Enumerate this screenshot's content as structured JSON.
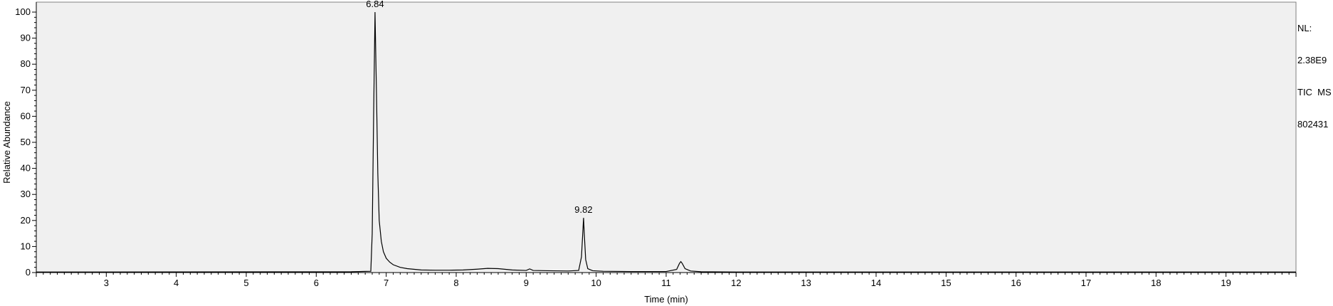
{
  "info": {
    "nl_label": "NL:",
    "nl_value": "2.38E9",
    "scan_filter": "TIC  MS",
    "sample": "802431"
  },
  "chart_data": {
    "type": "line",
    "xlabel": "Time (min)",
    "ylabel": "Relative Abundance",
    "xlim": [
      2.0,
      20.0
    ],
    "ylim": [
      0,
      100
    ],
    "x_ticks": [
      3,
      4,
      5,
      6,
      7,
      8,
      9,
      10,
      11,
      12,
      13,
      14,
      15,
      16,
      17,
      18,
      19
    ],
    "y_ticks": [
      0,
      10,
      20,
      30,
      40,
      50,
      60,
      70,
      80,
      90,
      100
    ],
    "grid": false,
    "background": "#f0f0f0",
    "line_color": "#000000",
    "annotations": [
      {
        "x": 6.84,
        "y": 100,
        "label": "6.84"
      },
      {
        "x": 9.82,
        "y": 21,
        "label": "9.82"
      }
    ],
    "series": [
      {
        "x": [
          2.0,
          6.5,
          6.78,
          6.8,
          6.82,
          6.84,
          6.86,
          6.88,
          6.9,
          6.93,
          6.96,
          7.0,
          7.05,
          7.1,
          7.2,
          7.3,
          7.5,
          7.7,
          7.9,
          8.1,
          8.3,
          8.45,
          8.6,
          8.8,
          9.0,
          9.05,
          9.1,
          9.3,
          9.6,
          9.75,
          9.79,
          9.81,
          9.82,
          9.83,
          9.85,
          9.88,
          9.95,
          10.1,
          10.5,
          11.0,
          11.15,
          11.19,
          11.21,
          11.23,
          11.27,
          11.35,
          11.5,
          12.0,
          20.0
        ],
        "y": [
          0.2,
          0.3,
          0.5,
          15,
          60,
          100,
          70,
          38,
          20,
          12,
          8,
          5.5,
          4,
          3,
          2,
          1.5,
          1.0,
          0.9,
          0.9,
          1.0,
          1.3,
          1.6,
          1.5,
          1.0,
          0.8,
          1.4,
          0.8,
          0.7,
          0.6,
          0.8,
          6,
          16,
          21,
          15,
          5,
          1.5,
          0.7,
          0.5,
          0.4,
          0.4,
          1.2,
          3.5,
          4.2,
          3.5,
          1.5,
          0.6,
          0.3,
          0.2,
          0.2
        ]
      }
    ]
  }
}
